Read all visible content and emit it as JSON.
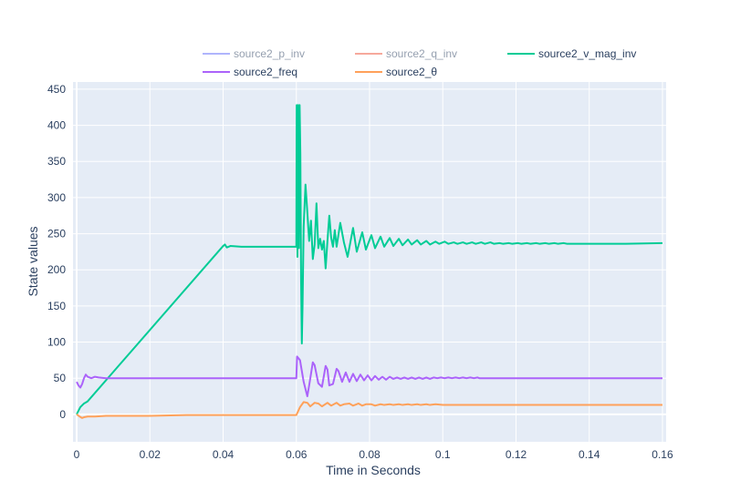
{
  "chart_data": {
    "type": "line",
    "title": "",
    "xlabel": "Time in Seconds",
    "ylabel": "State values",
    "xlim": [
      -0.001,
      0.161
    ],
    "ylim": [
      -38,
      460
    ],
    "xticks": [
      0,
      0.02,
      0.04,
      0.06,
      0.08,
      0.1,
      0.12,
      0.14,
      0.16
    ],
    "xtick_labels": [
      "0",
      "0.02",
      "0.04",
      "0.06",
      "0.08",
      "0.1",
      "0.12",
      "0.14",
      "0.16"
    ],
    "yticks": [
      0,
      50,
      100,
      150,
      200,
      250,
      300,
      350,
      400,
      450
    ],
    "ytick_labels": [
      "0",
      "50",
      "100",
      "150",
      "200",
      "250",
      "300",
      "350",
      "400",
      "450"
    ],
    "grid": true,
    "legend_position": "top",
    "series": [
      {
        "name": "source2_p_inv",
        "color": "#636efa",
        "hidden": true,
        "x": [],
        "y": []
      },
      {
        "name": "source2_q_inv",
        "color": "#ef553b",
        "hidden": true,
        "x": [],
        "y": []
      },
      {
        "name": "source2_v_mag_inv",
        "color": "#00cc96",
        "hidden": false,
        "x": [
          0,
          0.001,
          0.002,
          0.003,
          0.04,
          0.0405,
          0.041,
          0.042,
          0.045,
          0.05,
          0.055,
          0.06,
          0.0601,
          0.0603,
          0.0605,
          0.0607,
          0.0609,
          0.0611,
          0.0613,
          0.0615,
          0.0617,
          0.062,
          0.0625,
          0.063,
          0.0635,
          0.064,
          0.0645,
          0.065,
          0.0655,
          0.066,
          0.0665,
          0.067,
          0.0675,
          0.068,
          0.0685,
          0.069,
          0.0695,
          0.07,
          0.0705,
          0.071,
          0.072,
          0.073,
          0.074,
          0.0755,
          0.0765,
          0.078,
          0.079,
          0.0805,
          0.0815,
          0.083,
          0.084,
          0.0855,
          0.0865,
          0.088,
          0.089,
          0.0905,
          0.0915,
          0.093,
          0.094,
          0.0955,
          0.0965,
          0.098,
          0.099,
          0.1005,
          0.1015,
          0.103,
          0.104,
          0.1055,
          0.1065,
          0.108,
          0.109,
          0.1105,
          0.1115,
          0.113,
          0.114,
          0.1155,
          0.1165,
          0.118,
          0.119,
          0.1205,
          0.1215,
          0.123,
          0.124,
          0.1255,
          0.1265,
          0.128,
          0.129,
          0.1305,
          0.1315,
          0.133,
          0.134,
          0.14,
          0.15,
          0.16
        ],
        "y": [
          0,
          10,
          15,
          18,
          233,
          235,
          231,
          233,
          232,
          232,
          232,
          232,
          428,
          218,
          428,
          230,
          428,
          360,
          185,
          98,
          150,
          260,
          318,
          280,
          240,
          268,
          215,
          235,
          292,
          230,
          243,
          228,
          240,
          202,
          240,
          275,
          245,
          232,
          255,
          232,
          265,
          238,
          218,
          258,
          225,
          252,
          228,
          248,
          230,
          246,
          232,
          244,
          233,
          243,
          234,
          242,
          235,
          241,
          235,
          240,
          235,
          239,
          236,
          239,
          236,
          238,
          236,
          238,
          236,
          238,
          236,
          238,
          236,
          238,
          236,
          237,
          236,
          237,
          236,
          237,
          236,
          237,
          236,
          237,
          236,
          237,
          236,
          237,
          236,
          237,
          236,
          236,
          236,
          237
        ]
      },
      {
        "name": "source2_freq",
        "color": "#ab63fa",
        "hidden": false,
        "x": [
          0,
          0.0005,
          0.001,
          0.0015,
          0.002,
          0.0025,
          0.003,
          0.004,
          0.005,
          0.006,
          0.008,
          0.01,
          0.02,
          0.03,
          0.04,
          0.05,
          0.06,
          0.0602,
          0.061,
          0.062,
          0.063,
          0.0635,
          0.0645,
          0.065,
          0.066,
          0.067,
          0.068,
          0.0685,
          0.069,
          0.07,
          0.071,
          0.0715,
          0.0725,
          0.0735,
          0.0745,
          0.0755,
          0.0765,
          0.0775,
          0.0785,
          0.0795,
          0.0805,
          0.0815,
          0.0825,
          0.0835,
          0.0845,
          0.0855,
          0.0865,
          0.0875,
          0.0885,
          0.0895,
          0.0905,
          0.0915,
          0.0925,
          0.0935,
          0.0945,
          0.0955,
          0.0965,
          0.0975,
          0.0985,
          0.0995,
          0.1005,
          0.1015,
          0.1025,
          0.1035,
          0.1045,
          0.1055,
          0.1065,
          0.1075,
          0.1085,
          0.1095,
          0.11,
          0.12,
          0.13,
          0.14,
          0.15,
          0.16
        ],
        "y": [
          45,
          40,
          37,
          42,
          50,
          55,
          52,
          50,
          52,
          51,
          50,
          50,
          50,
          50,
          50,
          50,
          50,
          80,
          75,
          45,
          25,
          40,
          72,
          68,
          43,
          38,
          67,
          62,
          40,
          42,
          63,
          60,
          45,
          58,
          45,
          56,
          46,
          55,
          47,
          54,
          47,
          53,
          48,
          52,
          48,
          52,
          49,
          51,
          49,
          51,
          49,
          51,
          49,
          51,
          49,
          51,
          49,
          51,
          50,
          51,
          50,
          51,
          50,
          51,
          50,
          51,
          50,
          51,
          50,
          51,
          50,
          50,
          50,
          50,
          50,
          50
        ]
      },
      {
        "name": "source2_θ",
        "color": "#ffa15a",
        "hidden": false,
        "x": [
          0,
          0.0008,
          0.0015,
          0.002,
          0.003,
          0.005,
          0.008,
          0.01,
          0.02,
          0.03,
          0.04,
          0.05,
          0.06,
          0.061,
          0.062,
          0.063,
          0.0638,
          0.065,
          0.066,
          0.067,
          0.0685,
          0.0695,
          0.071,
          0.072,
          0.073,
          0.0745,
          0.0755,
          0.077,
          0.078,
          0.079,
          0.0805,
          0.0815,
          0.083,
          0.084,
          0.0855,
          0.0865,
          0.088,
          0.089,
          0.0905,
          0.0915,
          0.093,
          0.094,
          0.0955,
          0.0965,
          0.098,
          0.1,
          0.11,
          0.12,
          0.13,
          0.14,
          0.15,
          0.16
        ],
        "y": [
          0,
          -3,
          -5,
          -4,
          -3,
          -3,
          -2,
          -2,
          -2,
          -1,
          -1,
          -1,
          -1,
          10,
          17,
          16,
          11,
          16,
          15,
          11,
          16,
          12,
          16,
          12,
          14,
          15,
          12,
          15,
          12,
          14,
          14,
          12,
          14,
          13,
          14,
          13,
          14,
          13,
          14,
          13,
          14,
          13,
          14,
          13,
          14,
          13,
          13,
          13,
          13,
          13,
          13,
          13
        ]
      }
    ]
  }
}
